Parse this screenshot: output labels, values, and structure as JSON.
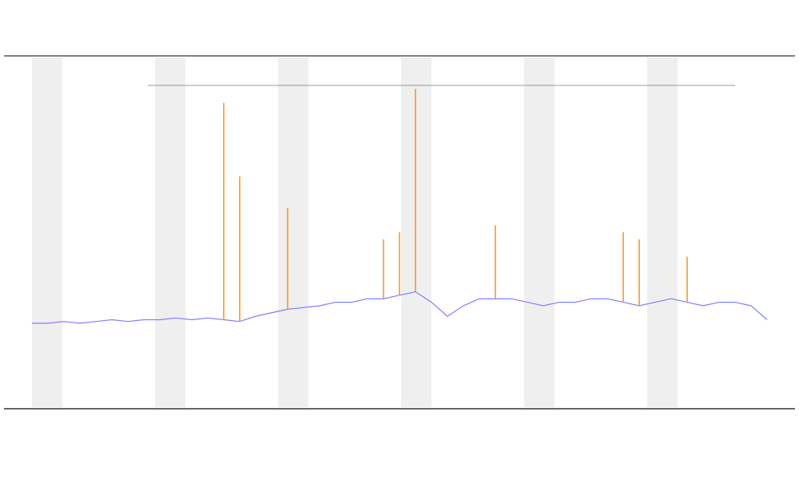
{
  "chart_data": {
    "type": "line",
    "x": [
      0,
      1,
      2,
      3,
      4,
      5,
      6,
      7,
      8,
      9,
      10,
      11,
      12,
      13,
      14,
      15,
      16,
      17,
      18,
      19,
      20,
      21,
      22,
      23,
      24,
      25,
      26,
      27,
      28,
      29,
      30,
      31,
      32,
      33,
      34,
      35,
      36,
      37,
      38,
      39,
      40,
      41,
      42,
      43,
      44,
      45,
      46
    ],
    "xlim": [
      0,
      46
    ],
    "ylim": [
      0,
      100
    ],
    "series": [
      {
        "color": "#7f7fff",
        "values": [
          24,
          24,
          24.5,
          24,
          24.5,
          25,
          24.5,
          25,
          25,
          25.5,
          25,
          25.5,
          25,
          24.5,
          26,
          27,
          28,
          28.5,
          29,
          30,
          30,
          31,
          31,
          32,
          33,
          30,
          26,
          29,
          31,
          31,
          31,
          30,
          29,
          30,
          30,
          31,
          31,
          30,
          29,
          30,
          31,
          30,
          29,
          30,
          30,
          29,
          25
        ]
      },
      {
        "color": "#ff8c1a",
        "mark": "spike",
        "values": [
          null,
          null,
          null,
          null,
          null,
          null,
          null,
          null,
          null,
          null,
          null,
          null,
          87,
          66,
          null,
          null,
          57,
          null,
          null,
          null,
          null,
          null,
          48,
          50,
          91,
          null,
          null,
          null,
          null,
          52,
          null,
          null,
          null,
          null,
          null,
          null,
          null,
          50,
          48,
          null,
          null,
          43,
          null,
          null,
          null,
          null,
          null
        ]
      }
    ]
  }
}
